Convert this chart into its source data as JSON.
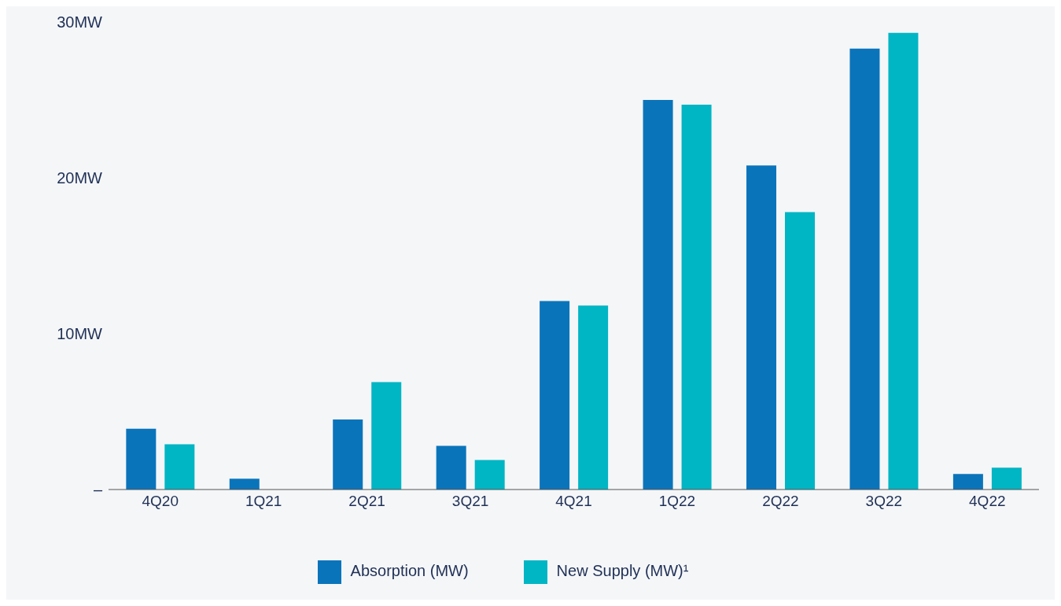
{
  "chart_data": {
    "type": "bar",
    "categories": [
      "4Q20",
      "1Q21",
      "2Q21",
      "3Q21",
      "4Q21",
      "1Q22",
      "2Q22",
      "3Q22",
      "4Q22"
    ],
    "series": [
      {
        "name": "Absorption (MW)",
        "color": "#0a74bb",
        "values": [
          3.9,
          0.7,
          4.5,
          2.8,
          12.1,
          25.0,
          20.8,
          28.3,
          1.0
        ]
      },
      {
        "name": "New Supply (MW)¹",
        "color": "#00b5c4",
        "values": [
          2.9,
          0,
          6.9,
          1.9,
          11.8,
          24.7,
          17.8,
          29.3,
          1.4
        ]
      }
    ],
    "ylim": [
      0,
      30
    ],
    "yticks": [
      {
        "value": 0,
        "label": "–"
      },
      {
        "value": 10,
        "label": "10MW"
      },
      {
        "value": 20,
        "label": "20MW"
      },
      {
        "value": 30,
        "label": "30MW"
      }
    ],
    "grid": false,
    "legend": "bottom"
  }
}
